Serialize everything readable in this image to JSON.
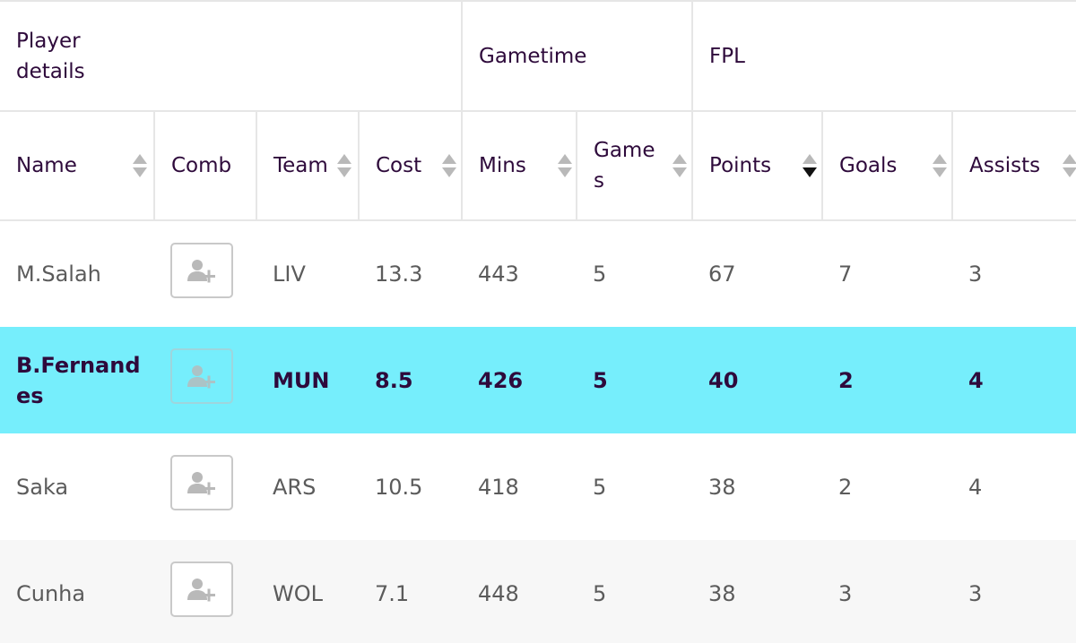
{
  "groups": {
    "player_details": "Player details",
    "gametime": "Gametime",
    "fpl": "FPL"
  },
  "columns": {
    "name": "Name",
    "comb": "Comb",
    "team": "Team",
    "cost": "Cost",
    "mins": "Mins",
    "games": "Games",
    "points": "Points",
    "goals": "Goals",
    "assists": "Assists"
  },
  "sort": {
    "active_column": "points",
    "direction": "descending"
  },
  "rows": [
    {
      "name": "M.Salah",
      "team": "LIV",
      "cost": "13.3",
      "mins": "443",
      "games": "5",
      "points": "67",
      "goals": "7",
      "assists": "3"
    },
    {
      "name": "B.Fernandes",
      "team": "MUN",
      "cost": "8.5",
      "mins": "426",
      "games": "5",
      "points": "40",
      "goals": "2",
      "assists": "4"
    },
    {
      "name": "Saka",
      "team": "ARS",
      "cost": "10.5",
      "mins": "418",
      "games": "5",
      "points": "38",
      "goals": "2",
      "assists": "4"
    },
    {
      "name": "Cunha",
      "team": "WOL",
      "cost": "7.1",
      "mins": "448",
      "games": "5",
      "points": "38",
      "goals": "3",
      "assists": "3"
    }
  ],
  "highlight_row": 1,
  "colors": {
    "highlight": "#76eefc",
    "header_text": "#2e0a3b",
    "body_text": "#5b5b5b",
    "shaded_row": "#f7f7f7",
    "border": "#e6e6e6"
  },
  "icons": {
    "add_player": "user-plus-icon",
    "sort": "sort-arrows-icon"
  }
}
